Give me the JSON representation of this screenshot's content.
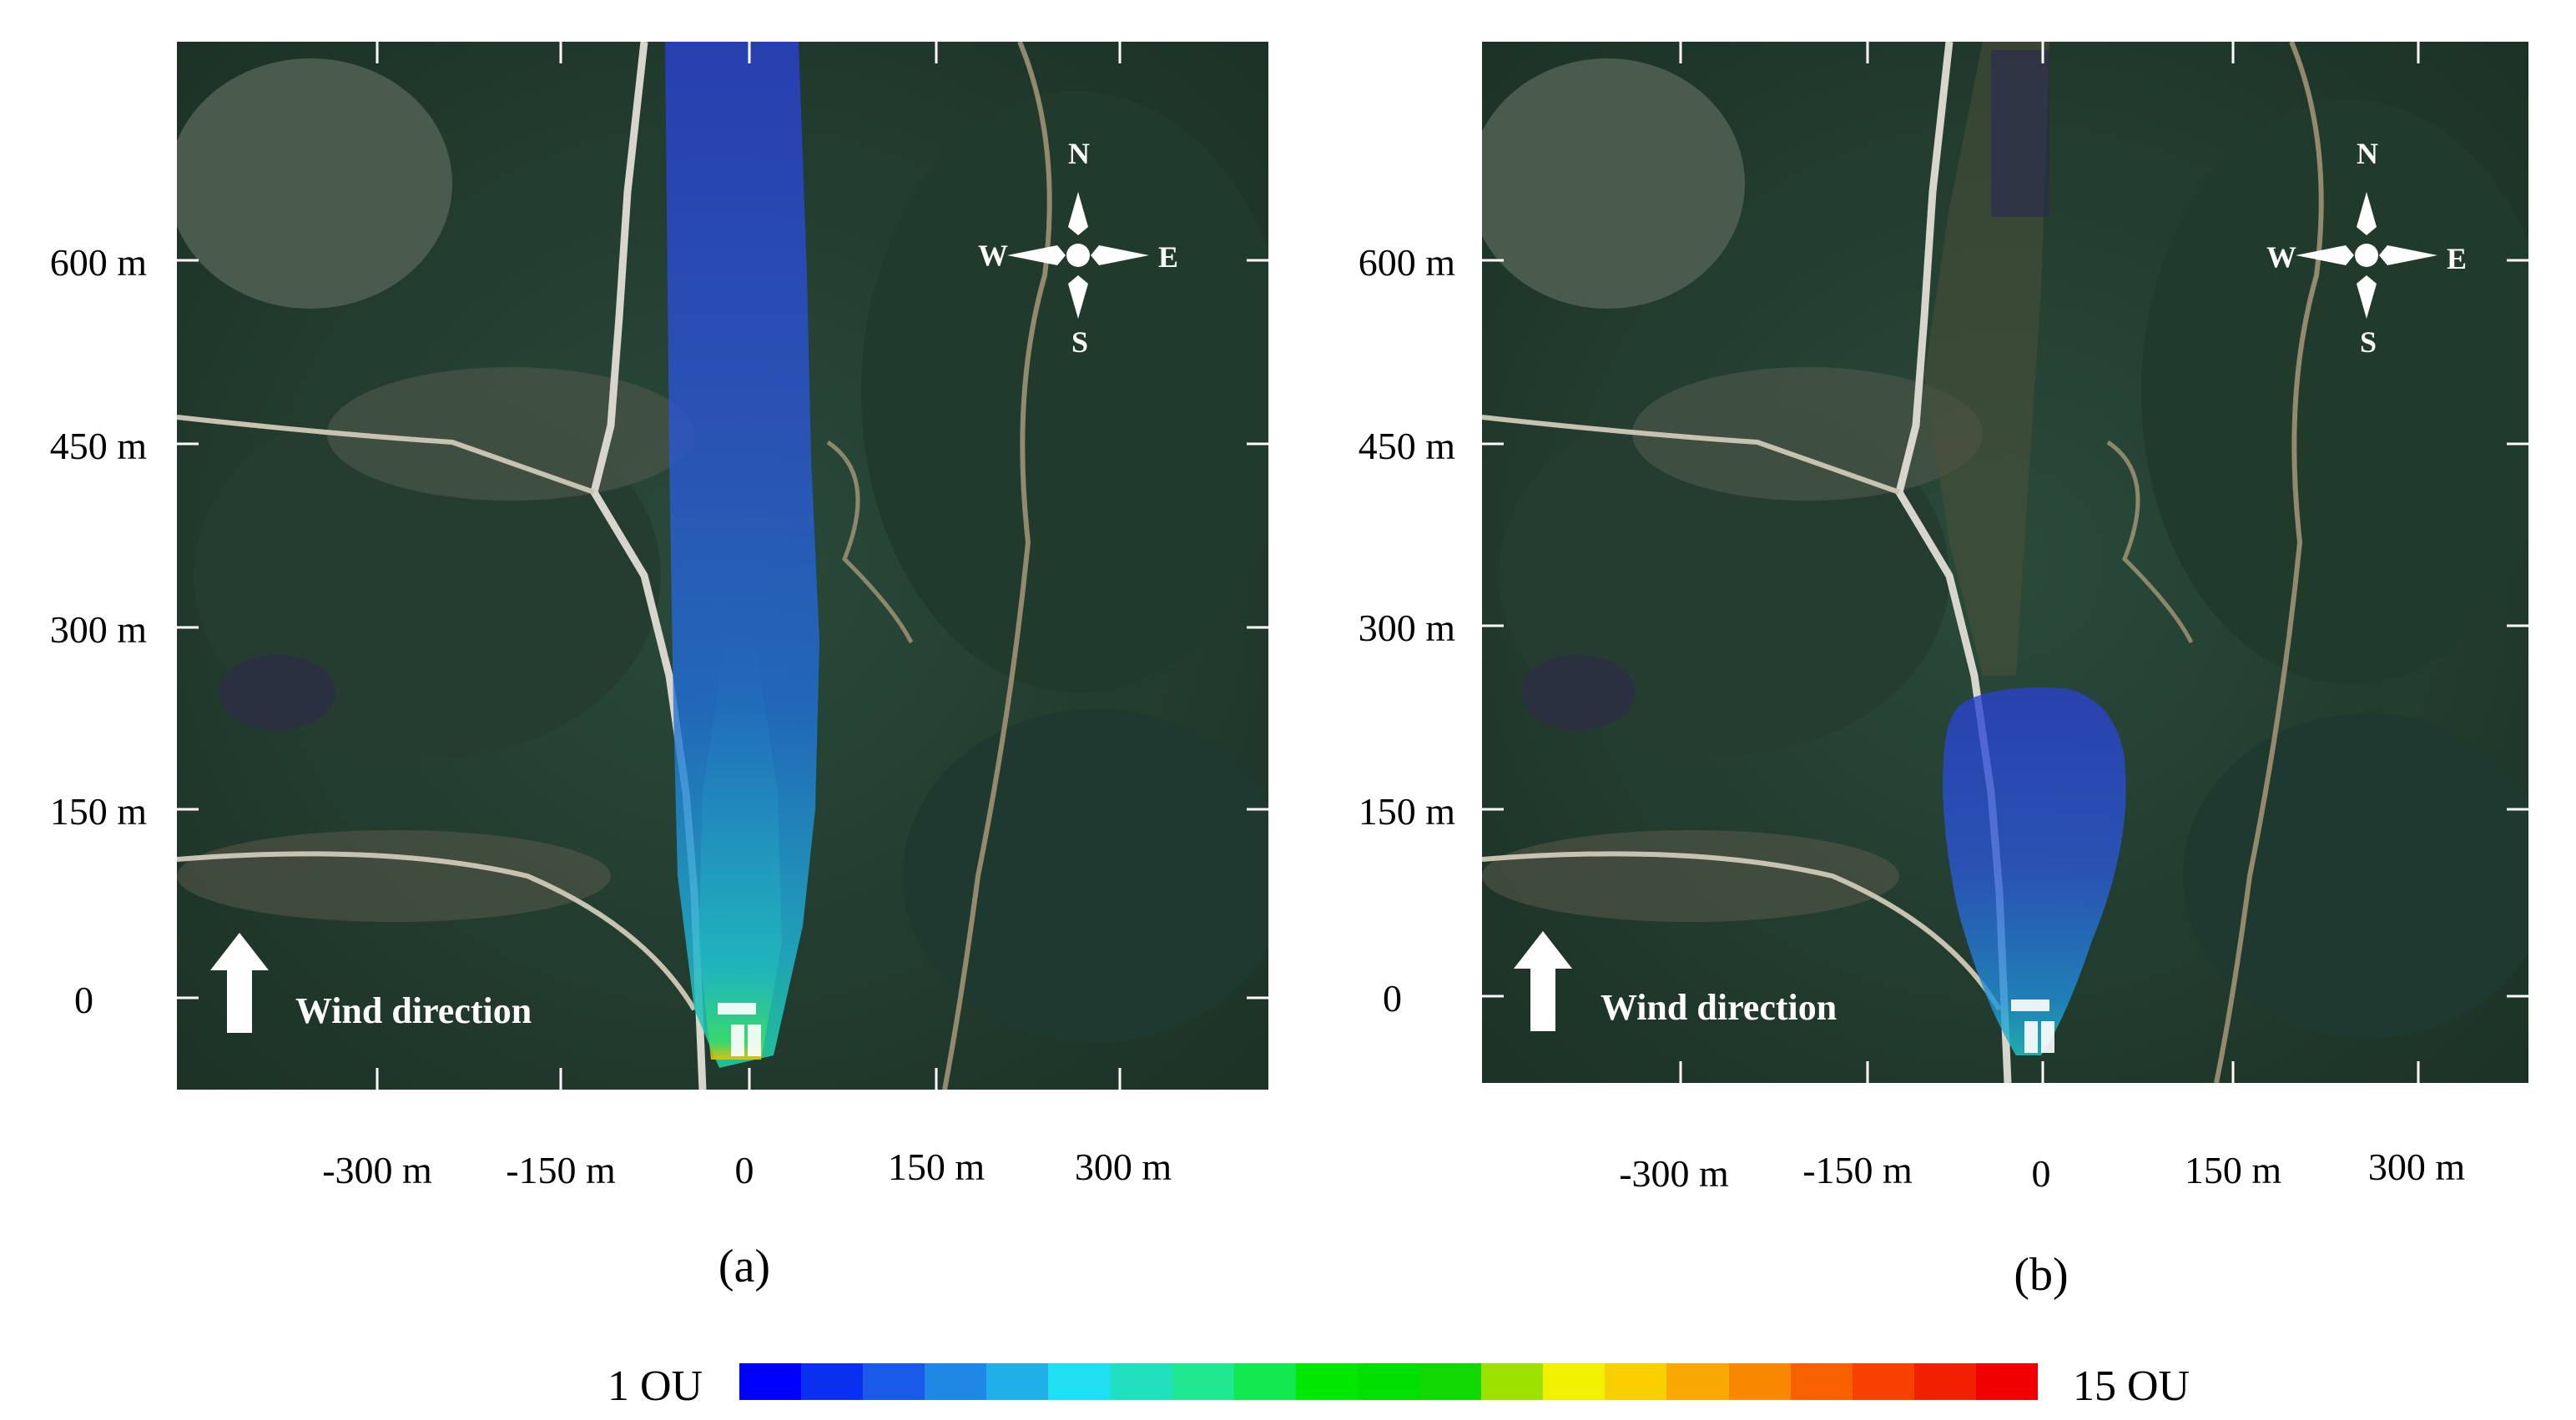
{
  "y_axis_labels": [
    "600 m",
    "450 m",
    "300 m",
    "150 m",
    "0"
  ],
  "x_axis_labels": [
    "-300 m",
    "-150 m",
    "0",
    "150 m",
    "300 m"
  ],
  "panels": [
    {
      "caption": "(a)",
      "wind_label": "Wind direction",
      "plume_extent": "long"
    },
    {
      "caption": "(b)",
      "wind_label": "Wind direction",
      "plume_extent": "short"
    }
  ],
  "compass": {
    "n": "N",
    "s": "S",
    "e": "E",
    "w": "W"
  },
  "colorbar": {
    "min_label": "1 OU",
    "max_label": "15 OU",
    "colors": [
      "#0000ff",
      "#0a2ff0",
      "#1a5ae8",
      "#1f88e5",
      "#1fb0e8",
      "#1fe0f0",
      "#20e0c0",
      "#20e890",
      "#10e850",
      "#00e800",
      "#00e000",
      "#10d800",
      "#9ee000",
      "#f0f000",
      "#f8d000",
      "#f8a800",
      "#f88800",
      "#f86000",
      "#f84000",
      "#f02000",
      "#f00000"
    ]
  }
}
